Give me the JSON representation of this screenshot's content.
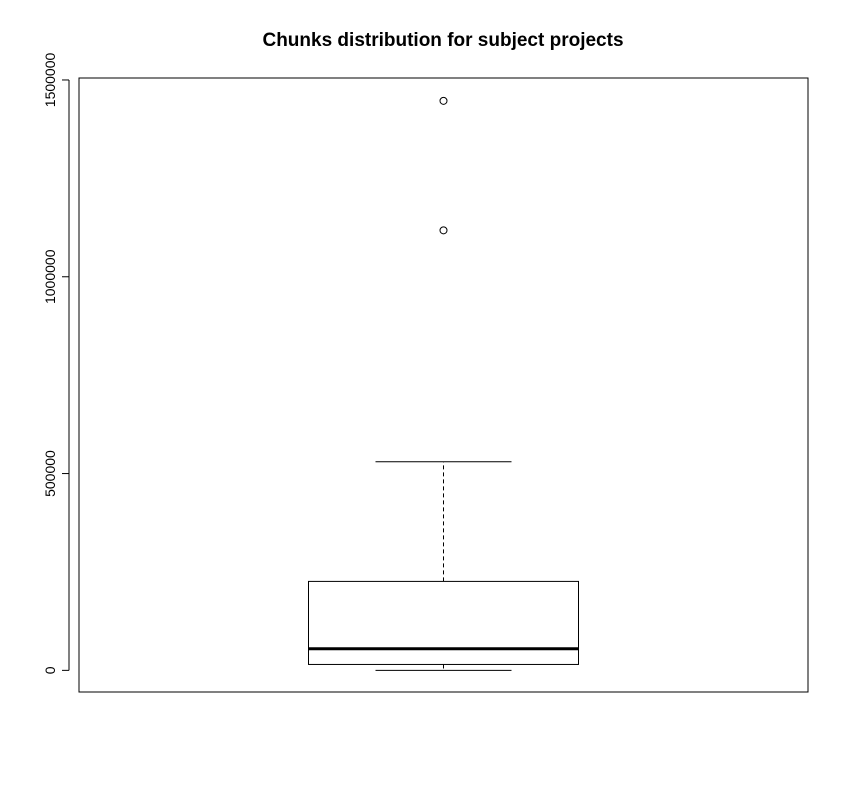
{
  "chart_data": {
    "type": "boxplot",
    "title": "Chunks distribution for subject projects",
    "xlabel": "",
    "ylabel": "",
    "ylim": [
      -55000,
      1505000
    ],
    "yticks": [
      0,
      500000,
      1000000,
      1500000
    ],
    "ytick_labels": [
      "0",
      "500000",
      "1000000",
      "1500000"
    ],
    "grid": false,
    "legend": "none",
    "series": [
      {
        "whisker_low": 0,
        "q1": 15000,
        "median": 55000,
        "q3": 226000,
        "whisker_high": 530000,
        "outliers": [
          1118000,
          1447000
        ]
      }
    ],
    "colors": {
      "line": "#000000",
      "box_fill": "#ffffff"
    }
  }
}
